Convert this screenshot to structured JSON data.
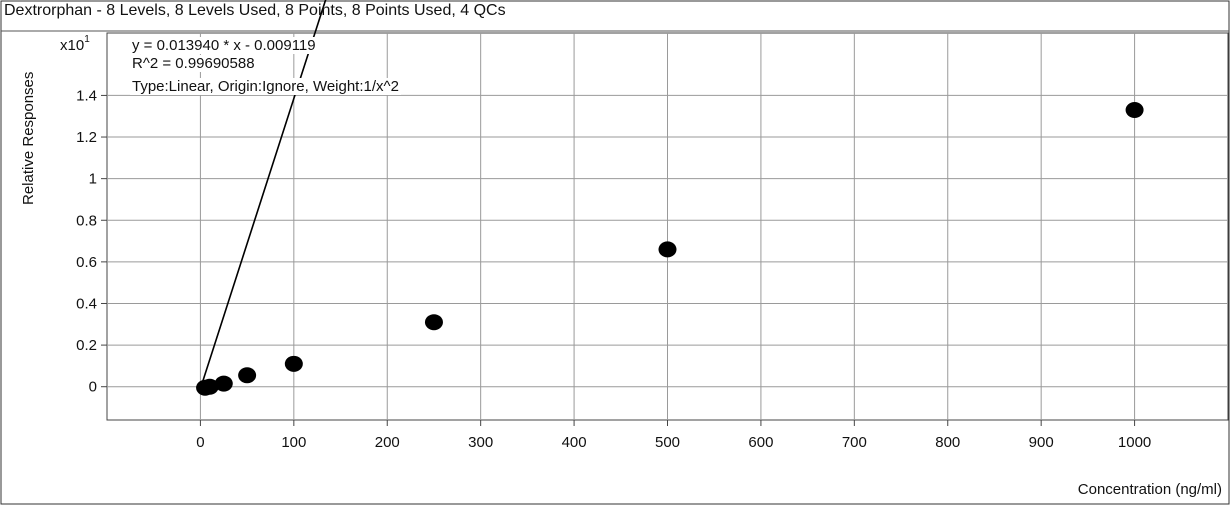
{
  "chart_data": {
    "type": "scatter",
    "title": "Dextrorphan - 8 Levels, 8 Levels Used, 8 Points, 8 Points Used, 4 QCs",
    "xlabel": "Concentration (ng/ml)",
    "ylabel": "Relative Responses",
    "y_multiplier_base": "x10",
    "y_multiplier_exp": "1",
    "annotations": {
      "equation": "y = 0.013940 * x  - 0.009119",
      "r_squared": "R^2 = 0.99690588",
      "fit_info": "Type:Linear, Origin:Ignore, Weight:1/x^2"
    },
    "xlim": [
      -100,
      1100
    ],
    "ylim": [
      -0.16,
      1.7
    ],
    "x_ticks": [
      0,
      100,
      200,
      300,
      400,
      500,
      600,
      700,
      800,
      900,
      1000
    ],
    "y_ticks": [
      0,
      0.2,
      0.4,
      0.6,
      0.8,
      1,
      1.2,
      1.4
    ],
    "y_tick_labels": [
      "0",
      "0.2",
      "0.4",
      "0.6",
      "0.8",
      "1",
      "1.2",
      "1.4"
    ],
    "grid": true,
    "series": [
      {
        "x": [
          5,
          10,
          25,
          50,
          100,
          250,
          500,
          1000
        ],
        "y": [
          -0.005,
          0.0,
          0.015,
          0.055,
          0.11,
          0.31,
          0.66,
          1.33
        ]
      }
    ],
    "fit_line": {
      "slope": 0.01394,
      "intercept": -0.009119,
      "x_range": [
        0,
        1100
      ]
    }
  }
}
